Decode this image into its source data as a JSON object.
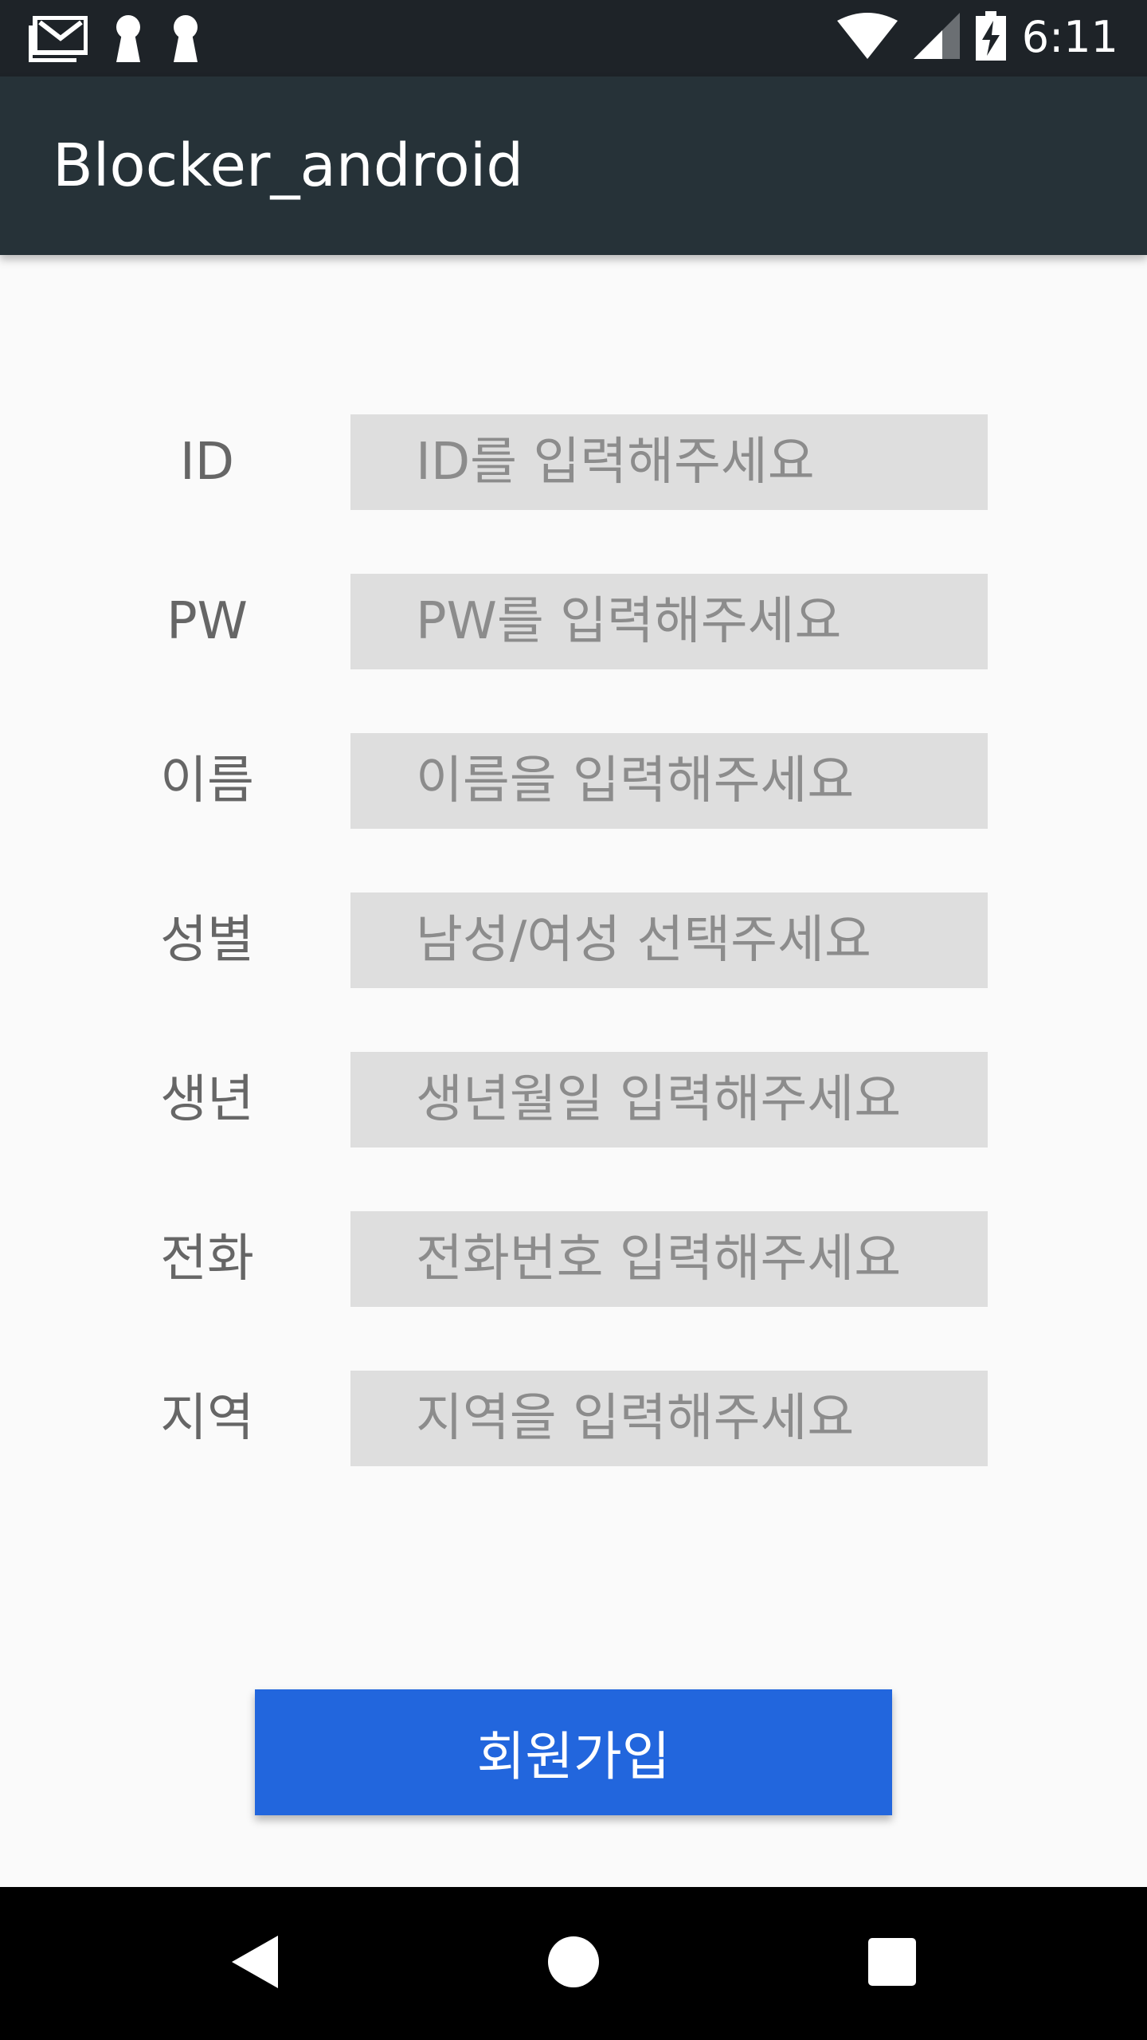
{
  "status_bar": {
    "time": "6:11",
    "icons_left": [
      "gmail-icon",
      "keyhole-icon",
      "keyhole-icon"
    ],
    "icons_right": [
      "wifi-icon",
      "cell-signal-icon",
      "battery-charging-icon"
    ]
  },
  "app_bar": {
    "title": "Blocker_android"
  },
  "form": {
    "rows": [
      {
        "label": "ID",
        "placeholder": "ID를 입력해주세요"
      },
      {
        "label": "PW",
        "placeholder": "PW를 입력해주세요"
      },
      {
        "label": "이름",
        "placeholder": "이름을 입력해주세요"
      },
      {
        "label": "성별",
        "placeholder": "남성/여성 선택주세요"
      },
      {
        "label": "생년",
        "placeholder": "생년월일 입력해주세요"
      },
      {
        "label": "전화",
        "placeholder": "전화번호 입력해주세요"
      },
      {
        "label": "지역",
        "placeholder": "지역을 입력해주세요"
      }
    ]
  },
  "signup_button": {
    "label": "회원가입"
  },
  "nav_bar": {
    "icons": [
      "back-icon",
      "home-icon",
      "recents-icon"
    ]
  },
  "colors": {
    "status_bar": "#1e2328",
    "app_bar": "#263238",
    "background": "#fafafa",
    "input_background": "#dedede",
    "button": "#2266dd"
  }
}
